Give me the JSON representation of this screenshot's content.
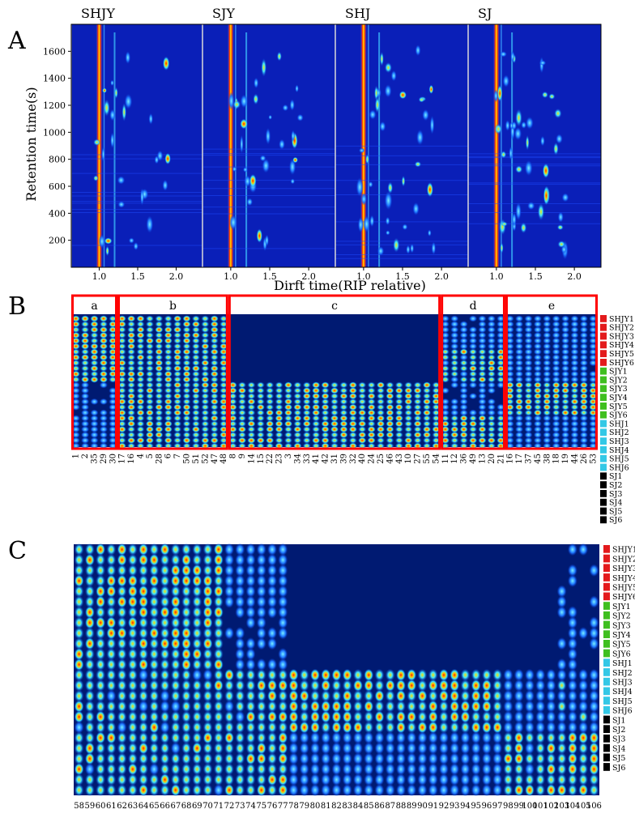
{
  "panels": {
    "A": "A",
    "B": "B",
    "C": "C"
  },
  "panelA": {
    "sample_titles": [
      "SHJY",
      "SJY",
      "SHJ",
      "SJ"
    ],
    "ylabel": "Retention time(s)",
    "xlabel": "Dirft time(RIP relative)",
    "y_ticks": [
      "1600",
      "1400",
      "1200",
      "1000",
      "800",
      "600",
      "400",
      "200"
    ],
    "x_ticks": [
      "1.0",
      "1.5",
      "2.0"
    ]
  },
  "panelB": {
    "groups": [
      "a",
      "b",
      "c",
      "d",
      "e"
    ],
    "columns": [
      "1",
      "2",
      "35",
      "29",
      "30",
      "17",
      "16",
      "4",
      "5",
      "28",
      "6",
      "7",
      "50",
      "51",
      "52",
      "47",
      "48",
      "8",
      "9",
      "14",
      "15",
      "22",
      "23",
      "3",
      "34",
      "33",
      "41",
      "42",
      "31",
      "39",
      "32",
      "40",
      "24",
      "25",
      "46",
      "43",
      "10",
      "27",
      "55",
      "54",
      "11",
      "12",
      "36",
      "49",
      "13",
      "20",
      "21",
      "16",
      "17",
      "37",
      "45",
      "38",
      "18",
      "19",
      "44",
      "26",
      "53"
    ]
  },
  "panelC": {
    "columns": [
      "58",
      "59",
      "60",
      "61",
      "62",
      "63",
      "64",
      "65",
      "66",
      "67",
      "68",
      "69",
      "70",
      "71",
      "72",
      "73",
      "74",
      "75",
      "76",
      "77",
      "78",
      "79",
      "80",
      "81",
      "82",
      "83",
      "84",
      "85",
      "86",
      "87",
      "88",
      "89",
      "90",
      "91",
      "92",
      "93",
      "94",
      "95",
      "96",
      "97",
      "98",
      "99",
      "100",
      "101",
      "102",
      "103",
      "104",
      "105",
      "106"
    ]
  },
  "legend": {
    "rows": [
      {
        "label": "SHJY1",
        "color": "#e31a1c"
      },
      {
        "label": "SHJY2",
        "color": "#e31a1c"
      },
      {
        "label": "SHJY3",
        "color": "#e31a1c"
      },
      {
        "label": "SHJY4",
        "color": "#e31a1c"
      },
      {
        "label": "SHJY5",
        "color": "#e31a1c"
      },
      {
        "label": "SHJY6",
        "color": "#e31a1c"
      },
      {
        "label": "SJY1",
        "color": "#3fbf1f"
      },
      {
        "label": "SJY2",
        "color": "#3fbf1f"
      },
      {
        "label": "SJY3",
        "color": "#3fbf1f"
      },
      {
        "label": "SJY4",
        "color": "#3fbf1f"
      },
      {
        "label": "SJY5",
        "color": "#3fbf1f"
      },
      {
        "label": "SJY6",
        "color": "#3fbf1f"
      },
      {
        "label": "SHJ1",
        "color": "#33c8e6"
      },
      {
        "label": "SHJ2",
        "color": "#33c8e6"
      },
      {
        "label": "SHJ3",
        "color": "#33c8e6"
      },
      {
        "label": "SHJ4",
        "color": "#33c8e6"
      },
      {
        "label": "SHJ5",
        "color": "#33c8e6"
      },
      {
        "label": "SHJ6",
        "color": "#33c8e6"
      },
      {
        "label": "SJ1",
        "color": "#000000"
      },
      {
        "label": "SJ2",
        "color": "#000000"
      },
      {
        "label": "SJ3",
        "color": "#000000"
      },
      {
        "label": "SJ4",
        "color": "#000000"
      },
      {
        "label": "SJ5",
        "color": "#000000"
      },
      {
        "label": "SJ6",
        "color": "#000000"
      }
    ]
  },
  "chart_data": [
    {
      "type": "heatmap",
      "title": "",
      "panels": [
        "SHJY",
        "SJY",
        "SHJ",
        "SJ"
      ],
      "xlabel": "Dirft time(RIP relative)",
      "ylabel": "Retention time(s)",
      "xlim": [
        0.7,
        2.3
      ],
      "ylim": [
        0,
        1800
      ],
      "x_ticks": [
        1.0,
        1.5,
        2.0
      ],
      "y_ticks": [
        200,
        400,
        600,
        800,
        1000,
        1200,
        1400,
        1600
      ]
    },
    {
      "type": "heatmap",
      "title": "",
      "groups": [
        "a",
        "b",
        "c",
        "d",
        "e"
      ],
      "samples": [
        "SHJY1",
        "SHJY2",
        "SHJY3",
        "SHJY4",
        "SHJY5",
        "SHJY6",
        "SJY1",
        "SJY2",
        "SJY3",
        "SJY4",
        "SJY5",
        "SJY6",
        "SHJ1",
        "SHJ2",
        "SHJ3",
        "SHJ4",
        "SHJ5",
        "SHJ6",
        "SJ1",
        "SJ2",
        "SJ3",
        "SJ4",
        "SJ5",
        "SJ6"
      ]
    },
    {
      "type": "heatmap",
      "title": "",
      "samples": [
        "SHJY1",
        "SHJY2",
        "SHJY3",
        "SHJY4",
        "SHJY5",
        "SHJY6",
        "SJY1",
        "SJY2",
        "SJY3",
        "SJY4",
        "SJY5",
        "SJY6",
        "SHJ1",
        "SHJ2",
        "SHJ3",
        "SHJ4",
        "SHJ5",
        "SHJ6",
        "SJ1",
        "SJ2",
        "SJ3",
        "SJ4",
        "SJ5",
        "SJ6"
      ]
    }
  ]
}
